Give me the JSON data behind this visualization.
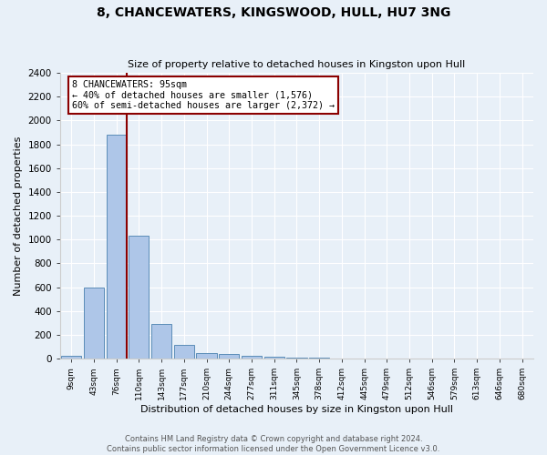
{
  "title": "8, CHANCEWATERS, KINGSWOOD, HULL, HU7 3NG",
  "subtitle": "Size of property relative to detached houses in Kingston upon Hull",
  "xlabel": "Distribution of detached houses by size in Kingston upon Hull",
  "ylabel": "Number of detached properties",
  "footer_line1": "Contains HM Land Registry data © Crown copyright and database right 2024.",
  "footer_line2": "Contains public sector information licensed under the Open Government Licence v3.0.",
  "bar_labels": [
    "9sqm",
    "43sqm",
    "76sqm",
    "110sqm",
    "143sqm",
    "177sqm",
    "210sqm",
    "244sqm",
    "277sqm",
    "311sqm",
    "345sqm",
    "378sqm",
    "412sqm",
    "445sqm",
    "479sqm",
    "512sqm",
    "546sqm",
    "579sqm",
    "613sqm",
    "646sqm",
    "680sqm"
  ],
  "bar_values": [
    20,
    600,
    1880,
    1030,
    290,
    115,
    50,
    35,
    20,
    15,
    10,
    10,
    0,
    0,
    0,
    0,
    0,
    0,
    0,
    0,
    0
  ],
  "bar_color": "#aec6e8",
  "bar_edge_color": "#5b8db8",
  "background_color": "#e8f0f8",
  "grid_color": "#ffffff",
  "vline_bin_index": 2,
  "vline_color": "#8b0000",
  "annotation_line1": "8 CHANCEWATERS: 95sqm",
  "annotation_line2": "← 40% of detached houses are smaller (1,576)",
  "annotation_line3": "60% of semi-detached houses are larger (2,372) →",
  "annotation_box_color": "#ffffff",
  "annotation_box_edge": "#8b0000",
  "ylim": [
    0,
    2400
  ],
  "yticks": [
    0,
    200,
    400,
    600,
    800,
    1000,
    1200,
    1400,
    1600,
    1800,
    2000,
    2200,
    2400
  ]
}
